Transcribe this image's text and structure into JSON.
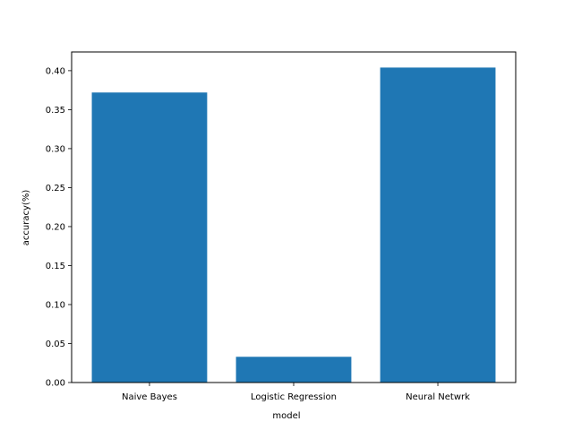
{
  "chart_data": {
    "type": "bar",
    "title": "",
    "xlabel": "model",
    "ylabel": "accuracy(%)",
    "categories": [
      "Naive Bayes",
      "Logistic Regression",
      "Neural Netwrk"
    ],
    "values": [
      0.372,
      0.033,
      0.404
    ],
    "ylim": [
      0,
      0.424
    ],
    "yticks": [
      "0.00",
      "0.05",
      "0.10",
      "0.15",
      "0.20",
      "0.25",
      "0.30",
      "0.35",
      "0.40"
    ],
    "grid": false,
    "bar_color": "#1f77b4"
  }
}
